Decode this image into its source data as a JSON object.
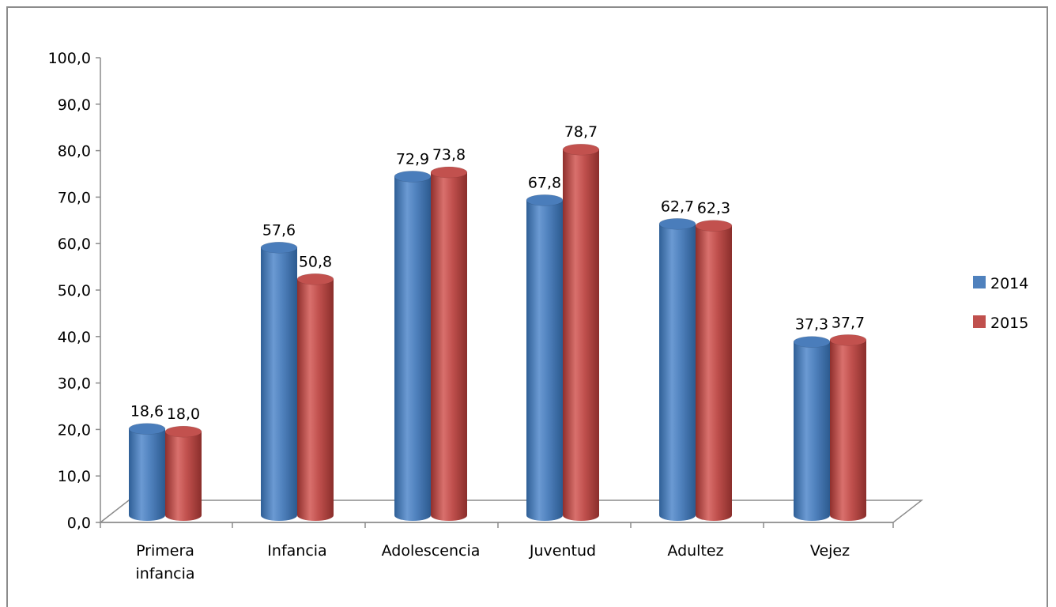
{
  "chart_data": {
    "type": "bar",
    "categories": [
      [
        "Primera",
        "infancia"
      ],
      [
        "Infancia"
      ],
      [
        "Adolescencia"
      ],
      [
        "Juventud"
      ],
      [
        "Adultez"
      ],
      [
        "Vejez"
      ]
    ],
    "series": [
      {
        "name": "2014",
        "color": "#4F81BD",
        "values": [
          18.6,
          57.6,
          72.9,
          67.8,
          62.7,
          37.3
        ],
        "labels": [
          "18,6",
          "57,6",
          "72,9",
          "67,8",
          "62,7",
          "37,3"
        ]
      },
      {
        "name": "2015",
        "color": "#C0504D",
        "values": [
          18.0,
          50.8,
          73.8,
          78.7,
          62.3,
          37.7
        ],
        "labels": [
          "18,0",
          "50,8",
          "73,8",
          "78,7",
          "62,3",
          "37,7"
        ]
      }
    ],
    "ylim": [
      0,
      100
    ],
    "yticks": [
      "0,0",
      "10,0",
      "20,0",
      "30,0",
      "40,0",
      "50,0",
      "60,0",
      "70,0",
      "80,0",
      "90,0",
      "100,0"
    ],
    "legend_position": "right",
    "style": "3d-cylinder"
  }
}
